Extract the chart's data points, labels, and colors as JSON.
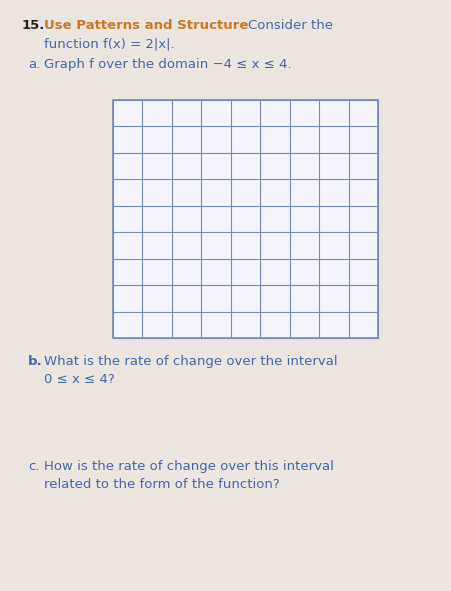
{
  "title_number": "15.",
  "title_bold_text": "Use Patterns and Structure",
  "title_normal_text": "Consider the",
  "title_line2": "function f(x) = 2|x|.",
  "part_a_label": "a.",
  "part_a_text": "Graph f over the domain −4 ≤ x ≤ 4.",
  "part_b_label": "b.",
  "part_b_line1": "What is the rate of change over the interval",
  "part_b_line2": "0 ≤ x ≤ 4?",
  "part_c_label": "c.",
  "part_c_line1": "How is the rate of change over this interval",
  "part_c_line2": "related to the form of the function?",
  "grid_rows": 9,
  "grid_cols": 9,
  "grid_line_color": "#7788bb",
  "grid_bg_color": "#f5f5ff",
  "background_color": "#ede5e0",
  "text_color": "#4466aa",
  "title_bold_color": "#cc7722",
  "number_color": "#222222",
  "fig_width": 4.51,
  "fig_height": 5.91,
  "fontsize_title": 9.5,
  "fontsize_body": 9.5
}
